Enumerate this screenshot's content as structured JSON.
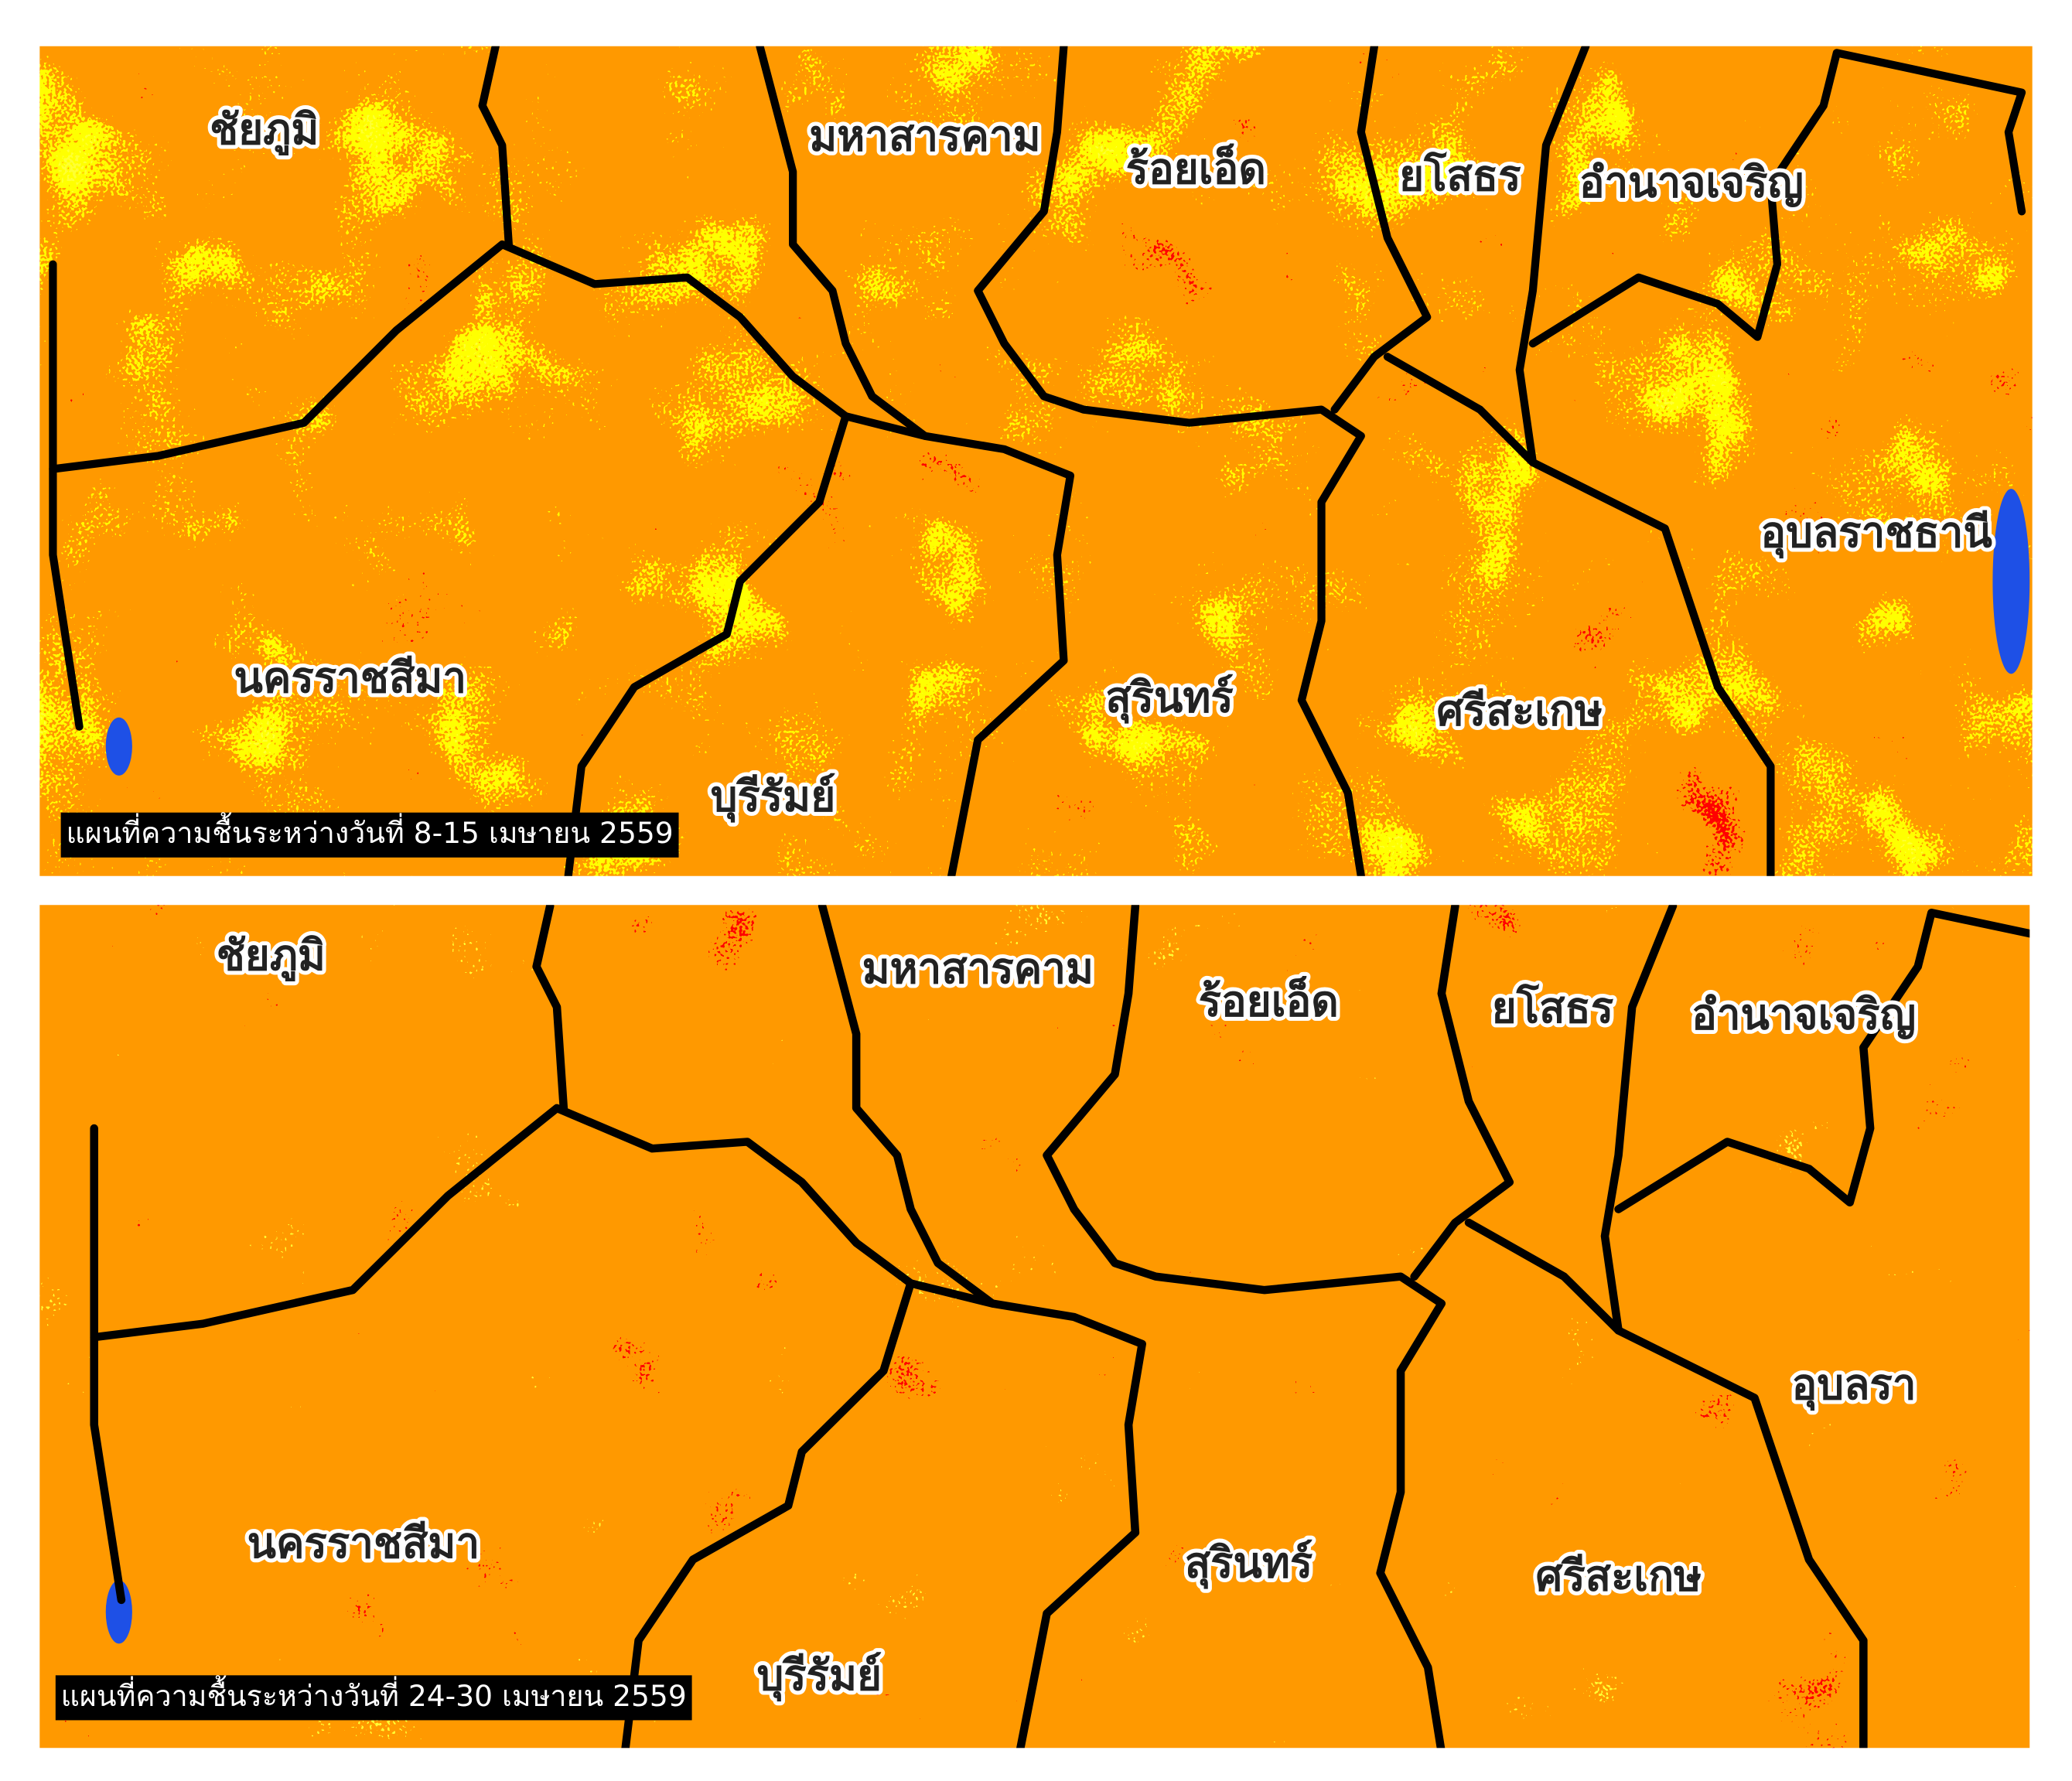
{
  "maps": [
    {
      "caption": "แผนที่ความชื้นระหว่างวันที่ 8-15 เมษายน 2559",
      "labels": [
        "ชัยภูมิ",
        "มหาสารคาม",
        "ร้อยเอ็ด",
        "ยโสธร",
        "อำนาจเจริญ",
        "อุบลราชธานี",
        "นครราชสีมา",
        "สุรินทร์",
        "ศรีสะเกษ",
        "บุรีรัมย์"
      ]
    },
    {
      "caption": "แผนที่ความชื้นระหว่างวันที่ 24-30 เมษายน 2559",
      "labels": [
        "ชัยภูมิ",
        "มหาสารคาม",
        "ร้อยเอ็ด",
        "ยโสธร",
        "อำนาจเจริญ",
        "อุบลรา",
        "นครราชสีมา",
        "สุรินทร์",
        "ศรีสะเกษ",
        "บุรีรัมย์"
      ]
    }
  ]
}
